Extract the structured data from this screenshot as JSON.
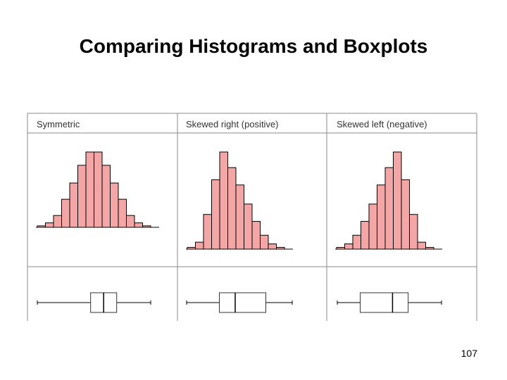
{
  "slide": {
    "title": "Comparing Histograms and Boxplots",
    "page_number": "107"
  },
  "colors": {
    "bar_fill": "#f4a6a6",
    "bar_stroke": "#000000",
    "frame": "#8a8a8a",
    "box_fill": "#ffffff"
  },
  "panels": [
    {
      "title": "Symmetric",
      "bars": [
        0.5,
        1.5,
        4,
        9.5,
        15,
        21,
        25.5,
        25.5,
        21,
        15,
        9.5,
        4,
        1.5,
        0.5
      ],
      "bar_max": 25.5,
      "boxplot": {
        "min": 0,
        "q1": 0.47,
        "median": 0.585,
        "q3": 0.7,
        "max": 1
      }
    },
    {
      "title": "Skewed right (positive)",
      "bars": [
        0.5,
        2,
        10,
        20,
        28,
        23.5,
        18.5,
        13,
        8,
        4,
        1.5,
        0.5
      ],
      "bar_max": 28,
      "boxplot": {
        "min": 0,
        "q1": 0.31,
        "median": 0.46,
        "q3": 0.75,
        "max": 1
      }
    },
    {
      "title": "Skewed left (negative)",
      "bars": [
        0.5,
        1.5,
        4,
        8,
        13,
        18.5,
        23.5,
        28,
        20,
        10,
        2,
        0.5
      ],
      "bar_max": 28,
      "boxplot": {
        "min": 0,
        "q1": 0.22,
        "median": 0.53,
        "q3": 0.68,
        "max": 1
      }
    }
  ]
}
